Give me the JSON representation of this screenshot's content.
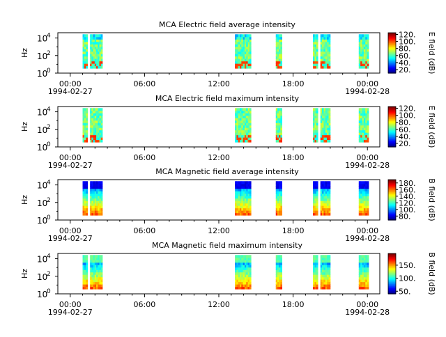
{
  "chart_data": [
    {
      "type": "heatmap",
      "title": "MCA  Electric field average intensity",
      "ylabel": "Hz",
      "y_ticks": [
        "10",
        "10",
        "10"
      ],
      "y_tick_exponents": [
        "0",
        "2",
        "4"
      ],
      "y_scale": "log",
      "ylim": [
        1,
        40000
      ],
      "x_tick_labels": [
        "00:00",
        "06:00",
        "12:00",
        "18:00",
        "00:00"
      ],
      "x_date_labels": [
        "1994-02-27",
        "1994-02-28"
      ],
      "xlim_hours": [
        -1,
        25
      ],
      "colorbar": {
        "label": "E field (dB)",
        "scale": "rainbow",
        "ticks": [
          "20.",
          "40.",
          "60.",
          "80.",
          "100.",
          "120."
        ],
        "tick_values": [
          20,
          40,
          60,
          80,
          100,
          120
        ],
        "range": [
          10,
          125
        ]
      },
      "data_segments_hours": [
        [
          1.0,
          1.4
        ],
        [
          1.6,
          2.6
        ],
        [
          13.3,
          14.6
        ],
        [
          16.6,
          17.1
        ],
        [
          19.6,
          20.0
        ],
        [
          20.2,
          21.0
        ],
        [
          23.3,
          24.1
        ]
      ]
    },
    {
      "type": "heatmap",
      "title": "MCA  Electric field maximum intensity",
      "ylabel": "Hz",
      "y_ticks": [
        "10",
        "10",
        "10"
      ],
      "y_tick_exponents": [
        "0",
        "2",
        "4"
      ],
      "y_scale": "log",
      "ylim": [
        1,
        40000
      ],
      "x_tick_labels": [
        "00:00",
        "06:00",
        "12:00",
        "18:00",
        "00:00"
      ],
      "x_date_labels": [
        "1994-02-27",
        "1994-02-28"
      ],
      "xlim_hours": [
        -1,
        25
      ],
      "colorbar": {
        "label": "E field (dB)",
        "scale": "rainbow",
        "ticks": [
          "20.",
          "40.",
          "60.",
          "80.",
          "100.",
          "120."
        ],
        "tick_values": [
          20,
          40,
          60,
          80,
          100,
          120
        ],
        "range": [
          10,
          125
        ]
      },
      "data_segments_hours": [
        [
          1.0,
          1.4
        ],
        [
          1.6,
          2.6
        ],
        [
          13.3,
          14.6
        ],
        [
          16.6,
          17.1
        ],
        [
          19.6,
          20.0
        ],
        [
          20.2,
          21.0
        ],
        [
          23.3,
          24.1
        ]
      ]
    },
    {
      "type": "heatmap",
      "title": "MCA  Magnetic field average intensity",
      "ylabel": "Hz",
      "y_ticks": [
        "10",
        "10",
        "10"
      ],
      "y_tick_exponents": [
        "0",
        "2",
        "4"
      ],
      "y_scale": "log",
      "ylim": [
        1,
        40000
      ],
      "x_tick_labels": [
        "00:00",
        "06:00",
        "12:00",
        "18:00",
        "00:00"
      ],
      "x_date_labels": [
        "1994-02-27",
        "1994-02-28"
      ],
      "xlim_hours": [
        -1,
        25
      ],
      "colorbar": {
        "label": "B field (dB)",
        "scale": "rainbow",
        "ticks": [
          "80.",
          "100.",
          "120.",
          "140.",
          "160.",
          "180."
        ],
        "tick_values": [
          80,
          100,
          120,
          140,
          160,
          180
        ],
        "range": [
          68,
          190
        ]
      },
      "data_segments_hours": [
        [
          1.0,
          1.4
        ],
        [
          1.6,
          2.6
        ],
        [
          13.3,
          14.6
        ],
        [
          16.6,
          17.1
        ],
        [
          19.6,
          20.0
        ],
        [
          20.2,
          21.0
        ],
        [
          23.3,
          24.1
        ]
      ]
    },
    {
      "type": "heatmap",
      "title": "MCA  Magnetic field maximum intensity",
      "ylabel": "Hz",
      "y_ticks": [
        "10",
        "10",
        "10"
      ],
      "y_tick_exponents": [
        "0",
        "2",
        "4"
      ],
      "y_scale": "log",
      "ylim": [
        1,
        40000
      ],
      "x_tick_labels": [
        "00:00",
        "06:00",
        "12:00",
        "18:00",
        "00:00"
      ],
      "x_date_labels": [
        "1994-02-27",
        "1994-02-28"
      ],
      "xlim_hours": [
        -1,
        25
      ],
      "colorbar": {
        "label": "B field (dB)",
        "scale": "rainbow",
        "ticks": [
          "50.",
          "100.",
          "150."
        ],
        "tick_values": [
          50,
          100,
          150
        ],
        "range": [
          40,
          195
        ]
      },
      "data_segments_hours": [
        [
          1.0,
          1.4
        ],
        [
          1.6,
          2.6
        ],
        [
          13.3,
          14.6
        ],
        [
          16.6,
          17.1
        ],
        [
          19.6,
          20.0
        ],
        [
          20.2,
          21.0
        ],
        [
          23.3,
          24.1
        ]
      ]
    }
  ]
}
